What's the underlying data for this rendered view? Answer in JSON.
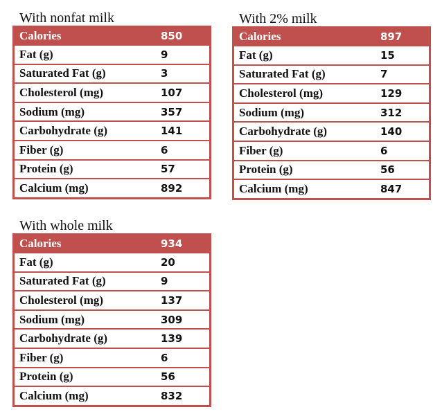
{
  "tables": [
    {
      "title": "With nonfat milk",
      "header": {
        "label": "Calories",
        "value": "850"
      },
      "rows": [
        {
          "label": "Fat (g)",
          "value": "9"
        },
        {
          "label": "Saturated Fat (g)",
          "value": "3"
        },
        {
          "label": "Cholesterol (mg)",
          "value": "107"
        },
        {
          "label": "Sodium (mg)",
          "value": "357"
        },
        {
          "label": "Carbohydrate (g)",
          "value": "141"
        },
        {
          "label": "Fiber (g)",
          "value": "6"
        },
        {
          "label": "Protein (g)",
          "value": "57"
        },
        {
          "label": "Calcium (mg)",
          "value": "892"
        }
      ]
    },
    {
      "title": "With 2% milk",
      "header": {
        "label": "Calories",
        "value": "897"
      },
      "rows": [
        {
          "label": "Fat (g)",
          "value": "15"
        },
        {
          "label": "Saturated Fat (g)",
          "value": "7"
        },
        {
          "label": "Cholesterol (mg)",
          "value": "129"
        },
        {
          "label": "Sodium (mg)",
          "value": "312"
        },
        {
          "label": "Carbohydrate (g)",
          "value": "140"
        },
        {
          "label": "Fiber (g)",
          "value": "6"
        },
        {
          "label": "Protein (g)",
          "value": "56"
        },
        {
          "label": "Calcium (mg)",
          "value": "847"
        }
      ]
    },
    {
      "title": "With whole milk",
      "header": {
        "label": "Calories",
        "value": "934"
      },
      "rows": [
        {
          "label": "Fat (g)",
          "value": "20"
        },
        {
          "label": "Saturated Fat (g)",
          "value": "9"
        },
        {
          "label": "Cholesterol (mg)",
          "value": "137"
        },
        {
          "label": "Sodium (mg)",
          "value": "309"
        },
        {
          "label": "Carbohydrate (g)",
          "value": "139"
        },
        {
          "label": "Fiber (g)",
          "value": "6"
        },
        {
          "label": "Protein (g)",
          "value": "56"
        },
        {
          "label": "Calcium (mg)",
          "value": "832"
        }
      ]
    }
  ],
  "colors": {
    "accent": "#c0504d"
  }
}
